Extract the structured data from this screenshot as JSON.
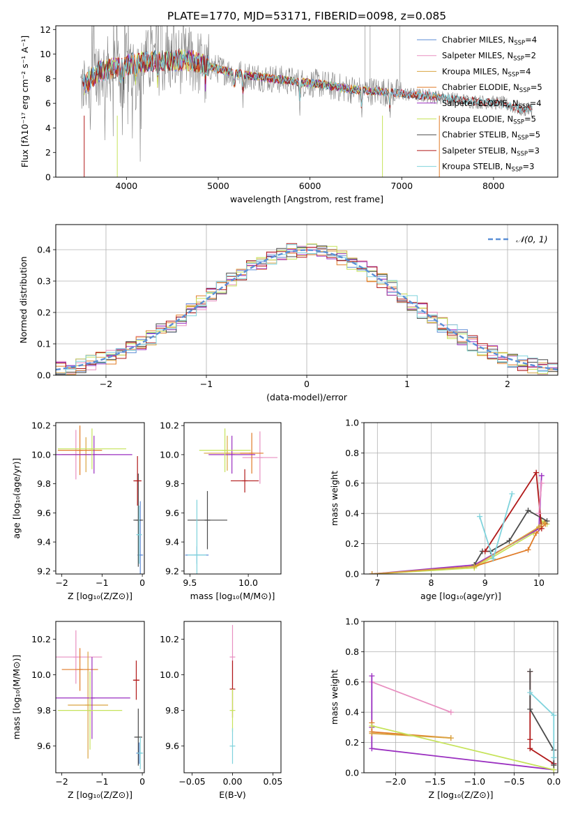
{
  "figure_title": "PLATE=1770, MJD=53171, FIBERID=0098, z=0.085",
  "colors": {
    "Chabrier MILES": "#5b8bd6",
    "Salpeter MILES": "#e88fc0",
    "Kroupa MILES": "#d9a441",
    "Chabrier ELODIE": "#e07b27",
    "Salpeter ELODIE": "#9a2fc0",
    "Kroupa ELODIE": "#c6e35a",
    "Chabrier STELIB": "#4b4b4b",
    "Salpeter STELIB": "#b01818",
    "Kroupa STELIB": "#7fd3dc",
    "data": "#808080",
    "gaussian": "#5b8fd6"
  },
  "chart_data": [
    {
      "type": "line",
      "title": "PLATE=1770, MJD=53171, FIBERID=0098, z=0.085",
      "xlabel": "wavelength [Angstrom, rest frame]",
      "ylabel": "Flux [fλ10⁻¹⁷ erg cm⁻² s⁻¹ A⁻¹]",
      "xlim": [
        3230,
        8700
      ],
      "ylim": [
        0,
        12.3
      ],
      "xticks": [
        4000,
        5000,
        6000,
        7000,
        8000
      ],
      "yticks": [
        0,
        2,
        4,
        6,
        8,
        10,
        12
      ],
      "legend_position": "top-right",
      "legend": [
        {
          "base": "Chabrier MILES, N",
          "sub": "SSP",
          "tail": "=4"
        },
        {
          "base": "Salpeter MILES, N",
          "sub": "SSP",
          "tail": "=2"
        },
        {
          "base": "Kroupa MILES, N",
          "sub": "SSP",
          "tail": "=4"
        },
        {
          "base": "Chabrier ELODIE, N",
          "sub": "SSP",
          "tail": "=5"
        },
        {
          "base": "Salpeter ELODIE, N",
          "sub": "SSP",
          "tail": "=4"
        },
        {
          "base": "Kroupa ELODIE, N",
          "sub": "SSP",
          "tail": "=5"
        },
        {
          "base": "Chabrier STELIB, N",
          "sub": "SSP",
          "tail": "=5"
        },
        {
          "base": "Salpeter STELIB, N",
          "sub": "SSP",
          "tail": "=3"
        },
        {
          "base": "Kroupa STELIB, N",
          "sub": "SSP",
          "tail": "=3"
        }
      ],
      "continuum": {
        "wavelength": [
          3500,
          3700,
          3900,
          4100,
          4300,
          4500,
          4700,
          4900,
          5100,
          5300,
          5500,
          5700,
          5900,
          6100,
          6300,
          6500,
          6700,
          6900,
          7100,
          7300,
          7500,
          7700,
          7900,
          8100,
          8300
        ],
        "flux": [
          7.3,
          8.6,
          8.9,
          9.3,
          9.4,
          9.5,
          9.5,
          9.0,
          8.6,
          8.3,
          8.1,
          7.9,
          7.7,
          7.6,
          7.3,
          7.1,
          7.0,
          6.9,
          6.7,
          6.6,
          6.4,
          6.2,
          6.1,
          6.0,
          5.5
        ]
      }
    },
    {
      "type": "histogram",
      "xlabel": "(data-model)/error",
      "ylabel": "Normed distribution",
      "xlim": [
        -2.5,
        2.5
      ],
      "ylim": [
        0,
        0.48
      ],
      "xticks": [
        -2,
        -1,
        0,
        1,
        2
      ],
      "yticks": [
        0.0,
        0.1,
        0.2,
        0.3,
        0.4
      ],
      "grid": true,
      "legend_position": "top-right",
      "gaussian_label": "𝒩(0, 1)",
      "gaussian": {
        "mean": 0,
        "sigma": 1
      }
    },
    {
      "type": "errorbar",
      "xlabel": "Z [log₁₀(Z/Z⊙)]",
      "ylabel": "age  [log₁₀(age/yr)]",
      "xlim": [
        -2.15,
        0.05
      ],
      "ylim": [
        9.18,
        10.22
      ],
      "xticks": [
        -2,
        -1,
        0
      ],
      "yticks": [
        9.2,
        9.4,
        9.6,
        9.8,
        10.0,
        10.2
      ],
      "points": [
        {
          "library": "Chabrier MILES",
          "x": -0.05,
          "y": 9.31,
          "xerr": 0.05,
          "yerr": 0.37
        },
        {
          "library": "Salpeter MILES",
          "x": -1.65,
          "y": 10.0,
          "xerr": 0.7,
          "yerr": 0.17
        },
        {
          "library": "Kroupa MILES",
          "x": -1.4,
          "y": 10.0,
          "xerr": 0.6,
          "yerr": 0.12
        },
        {
          "library": "Chabrier ELODIE",
          "x": -1.55,
          "y": 10.03,
          "xerr": 0.55,
          "yerr": 0.17
        },
        {
          "library": "Salpeter ELODIE",
          "x": -1.2,
          "y": 10.0,
          "xerr": 0.95,
          "yerr": 0.13
        },
        {
          "library": "Kroupa ELODIE",
          "x": -1.25,
          "y": 10.04,
          "xerr": 0.85,
          "yerr": 0.14
        },
        {
          "library": "Chabrier STELIB",
          "x": -0.1,
          "y": 9.55,
          "xerr": 0.12,
          "yerr": 0.32
        },
        {
          "library": "Salpeter STELIB",
          "x": -0.12,
          "y": 9.82,
          "xerr": 0.1,
          "yerr": 0.17
        },
        {
          "library": "Kroupa STELIB",
          "x": -0.08,
          "y": 9.45,
          "xerr": 0.05,
          "yerr": 0.2
        }
      ]
    },
    {
      "type": "errorbar",
      "xlabel": "mass [log₁₀(M/M⊙)]",
      "ylabel": "",
      "xlim": [
        9.45,
        10.28
      ],
      "ylim": [
        9.18,
        10.22
      ],
      "xticks": [
        9.5,
        10.0
      ],
      "yticks": [
        9.2,
        9.4,
        9.6,
        9.8,
        10.0,
        10.2
      ],
      "points": [
        {
          "library": "Chabrier MILES",
          "x": 9.56,
          "y": 9.31,
          "xerr": 0.1,
          "yerr": 0.06
        },
        {
          "library": "Salpeter MILES",
          "x": 10.1,
          "y": 9.98,
          "xerr": 0.15,
          "yerr": 0.18
        },
        {
          "library": "Kroupa MILES",
          "x": 9.82,
          "y": 10.01,
          "xerr": 0.2,
          "yerr": 0.12
        },
        {
          "library": "Chabrier ELODIE",
          "x": 10.03,
          "y": 10.01,
          "xerr": 0.1,
          "yerr": 0.14
        },
        {
          "library": "Salpeter ELODIE",
          "x": 9.86,
          "y": 10.0,
          "xerr": 0.2,
          "yerr": 0.13
        },
        {
          "library": "Kroupa ELODIE",
          "x": 9.8,
          "y": 10.03,
          "xerr": 0.22,
          "yerr": 0.15
        },
        {
          "library": "Chabrier STELIB",
          "x": 9.65,
          "y": 9.55,
          "xerr": 0.17,
          "yerr": 0.2
        },
        {
          "library": "Salpeter STELIB",
          "x": 9.97,
          "y": 9.82,
          "xerr": 0.12,
          "yerr": 0.08
        },
        {
          "library": "Kroupa STELIB",
          "x": 9.56,
          "y": 9.31,
          "xerr": 0.08,
          "yerr": 0.38
        }
      ]
    },
    {
      "type": "line",
      "xlabel": "age  [log₁₀(age/yr)]",
      "ylabel": "mass weight",
      "xlim": [
        6.75,
        10.35
      ],
      "ylim": [
        0,
        1.0
      ],
      "xticks": [
        7,
        8,
        9,
        10
      ],
      "yticks": [
        0.0,
        0.2,
        0.4,
        0.6,
        0.8,
        1.0
      ],
      "grid": true,
      "series": [
        {
          "library": "Kroupa ELODIE",
          "x": [
            6.9,
            8.8,
            9.9,
            10.05,
            10.15
          ],
          "y": [
            0.0,
            0.04,
            0.27,
            0.35,
            0.33
          ]
        },
        {
          "library": "Chabrier ELODIE",
          "x": [
            6.9,
            8.8,
            9.8,
            9.95,
            10.12
          ],
          "y": [
            0.0,
            0.05,
            0.16,
            0.27,
            0.33
          ]
        },
        {
          "library": "Salpeter ELODIE",
          "x": [
            6.9,
            8.8,
            10.0,
            10.05
          ],
          "y": [
            0.0,
            0.06,
            0.3,
            0.65
          ]
        },
        {
          "library": "Chabrier STELIB",
          "x": [
            8.8,
            8.95,
            9.1,
            9.45,
            9.8,
            10.15
          ],
          "y": [
            0.06,
            0.15,
            0.15,
            0.22,
            0.42,
            0.35
          ]
        },
        {
          "library": "Salpeter STELIB",
          "x": [
            9.0,
            9.95,
            10.05
          ],
          "y": [
            0.15,
            0.67,
            0.3
          ]
        },
        {
          "library": "Salpeter MILES",
          "x": [
            10.0,
            10.05
          ],
          "y": [
            0.4,
            0.6
          ]
        },
        {
          "library": "Kroupa MILES",
          "x": [
            6.9,
            8.8,
            10.0,
            10.1
          ],
          "y": [
            0.0,
            0.05,
            0.31,
            0.34
          ]
        },
        {
          "library": "Kroupa STELIB",
          "x": [
            8.9,
            9.15,
            9.5
          ],
          "y": [
            0.38,
            0.1,
            0.53
          ]
        }
      ]
    },
    {
      "type": "errorbar",
      "xlabel": "Z [log₁₀(Z/Z⊙)]",
      "ylabel": "mass [log₁₀(M/M⊙)]",
      "xlim": [
        -2.15,
        0.05
      ],
      "ylim": [
        9.45,
        10.3
      ],
      "xticks": [
        -2,
        -1,
        0
      ],
      "yticks": [
        9.6,
        9.8,
        10.0,
        10.2
      ],
      "points": [
        {
          "library": "Chabrier MILES",
          "x": -0.08,
          "y": 9.56,
          "xerr": 0.06,
          "yerr": 0.06
        },
        {
          "library": "Salpeter MILES",
          "x": -1.65,
          "y": 10.1,
          "xerr": 0.65,
          "yerr": 0.15
        },
        {
          "library": "Kroupa MILES",
          "x": -1.35,
          "y": 9.83,
          "xerr": 0.5,
          "yerr": 0.3
        },
        {
          "library": "Chabrier ELODIE",
          "x": -1.55,
          "y": 10.03,
          "xerr": 0.45,
          "yerr": 0.12
        },
        {
          "library": "Salpeter ELODIE",
          "x": -1.25,
          "y": 9.87,
          "xerr": 0.95,
          "yerr": 0.23
        },
        {
          "library": "Kroupa ELODIE",
          "x": -1.3,
          "y": 9.8,
          "xerr": 0.8,
          "yerr": 0.22
        },
        {
          "library": "Chabrier STELIB",
          "x": -0.1,
          "y": 9.65,
          "xerr": 0.1,
          "yerr": 0.16
        },
        {
          "library": "Salpeter STELIB",
          "x": -0.15,
          "y": 9.97,
          "xerr": 0.08,
          "yerr": 0.11
        },
        {
          "library": "Kroupa STELIB",
          "x": -0.05,
          "y": 9.56,
          "xerr": 0.06,
          "yerr": 0.09
        }
      ]
    },
    {
      "type": "errorbar",
      "xlabel": "E(B-V)",
      "ylabel": "",
      "xlim": [
        -0.06,
        0.06
      ],
      "ylim": [
        9.45,
        10.3
      ],
      "xticks": [
        -0.05,
        0.0,
        0.05
      ],
      "xticklabels": [
        "−0.05",
        "0.00",
        "0.05"
      ],
      "yticks": [
        9.6,
        9.8,
        10.0,
        10.2
      ],
      "points": [
        {
          "library": "Salpeter MILES",
          "x": 0.0,
          "y": 10.1,
          "xerr": 0.0,
          "yerr": 0.18
        },
        {
          "library": "Salpeter STELIB",
          "x": 0.0,
          "y": 9.92,
          "xerr": 0.0,
          "yerr": 0.16
        },
        {
          "library": "Kroupa ELODIE",
          "x": 0.0,
          "y": 9.8,
          "xerr": 0.0,
          "yerr": 0.12
        },
        {
          "library": "Kroupa STELIB",
          "x": 0.0,
          "y": 9.6,
          "xerr": 0.0,
          "yerr": 0.1
        }
      ]
    },
    {
      "type": "line",
      "xlabel": "Z [log₁₀(Z/Z⊙)]",
      "ylabel": "mass weight",
      "xlim": [
        -2.4,
        0.05
      ],
      "ylim": [
        0,
        1.0
      ],
      "xticks": [
        -2.0,
        -1.5,
        -1.0,
        -0.5,
        0.0
      ],
      "xticklabels": [
        "−2.0",
        "−1.5",
        "−1.0",
        "−0.5",
        "0.0"
      ],
      "yticks": [
        0.0,
        0.2,
        0.4,
        0.6,
        0.8,
        1.0
      ],
      "grid": true,
      "series": [
        {
          "library": "Salpeter MILES",
          "x": [
            -2.3,
            -1.3
          ],
          "y": [
            0.6,
            0.4
          ]
        },
        {
          "library": "Salpeter ELODIE",
          "x": [
            -2.3,
            -2.3,
            -2.3,
            0.0,
            0.0
          ],
          "y": [
            0.64,
            0.3,
            0.16,
            0.02,
            0.06
          ]
        },
        {
          "library": "Chabrier ELODIE",
          "x": [
            -2.3,
            -2.3,
            -1.3
          ],
          "y": [
            0.33,
            0.27,
            0.23
          ]
        },
        {
          "library": "Kroupa MILES",
          "x": [
            -2.3,
            -1.3
          ],
          "y": [
            0.26,
            0.23
          ]
        },
        {
          "library": "Kroupa ELODIE",
          "x": [
            -2.3,
            0.0,
            0.0
          ],
          "y": [
            0.31,
            0.02,
            0.05
          ]
        },
        {
          "library": "Salpeter STELIB",
          "x": [
            -0.3,
            -0.3,
            -0.3,
            0.0
          ],
          "y": [
            0.67,
            0.22,
            0.16,
            0.06
          ]
        },
        {
          "library": "Chabrier STELIB",
          "x": [
            -0.3,
            -0.3,
            0.0,
            0.0
          ],
          "y": [
            0.67,
            0.42,
            0.15,
            0.05
          ]
        },
        {
          "library": "Kroupa STELIB",
          "x": [
            -0.3,
            0.0,
            0.0
          ],
          "y": [
            0.53,
            0.38,
            0.1
          ]
        }
      ]
    }
  ]
}
